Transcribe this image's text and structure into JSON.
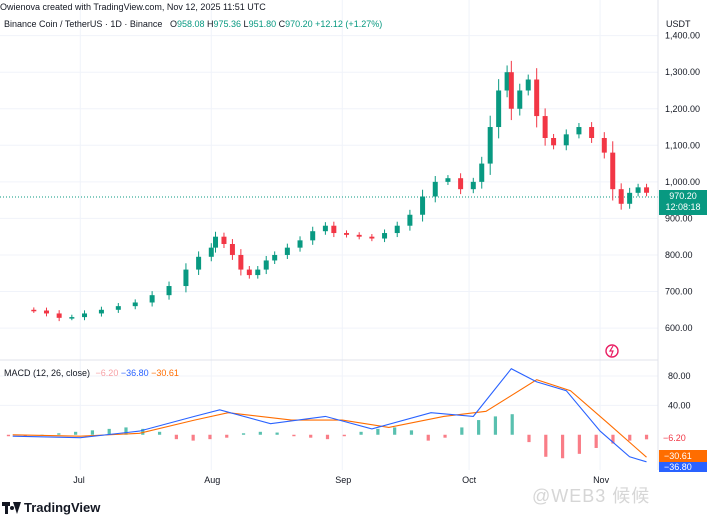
{
  "header": {
    "created_by": "Owienova created with TradingView.com, Nov 12, 2025 11:51 UTC",
    "symbol": "Binance Coin / TetherUS · 1D · Binance",
    "o_label": "O",
    "o_value": "958.08",
    "h_label": "H",
    "h_value": "975.36",
    "l_label": "L",
    "l_value": "951.80",
    "c_label": "C",
    "c_value": "970.20",
    "change": "+12.12 (+1.27%)"
  },
  "currency": "USDT",
  "last_price_label": "970.20",
  "countdown_label": "12:08:18",
  "macd_legend": {
    "title": "MACD (12, 26, close)",
    "hist": "−6.20",
    "macd": "−36.80",
    "signal": "−30.61"
  },
  "macd_badges": {
    "hist": "−6.20",
    "signal": "−30.61",
    "macd": "−36.80"
  },
  "footer": {
    "logo": "TradingView",
    "watermark": "@WEB3 候候"
  },
  "colors": {
    "up": "#089981",
    "down": "#f23645",
    "macd": "#2962ff",
    "signal": "#ff6d00",
    "hist_neg": "#f7525f",
    "hist_pos": "#22ab94"
  },
  "chart_data": [
    {
      "type": "candlestick",
      "title": "Binance Coin / TetherUS · 1D · Binance",
      "ylim": [
        540,
        1410
      ],
      "y_ticks": [
        "1,400.00",
        "1,300.00",
        "1,200.00",
        "1,100.00",
        "1,000.00",
        "900.00",
        "800.00",
        "700.00",
        "600.00"
      ],
      "x_ticks": [
        "Jul",
        "Aug",
        "Sep",
        "Oct",
        "Nov"
      ],
      "points": [
        [
          "2025-06-17",
          650
        ],
        [
          "2025-06-20",
          648
        ],
        [
          "2025-06-23",
          640
        ],
        [
          "2025-06-26",
          628
        ],
        [
          "2025-06-29",
          630
        ],
        [
          "2025-07-02",
          640
        ],
        [
          "2025-07-06",
          650
        ],
        [
          "2025-07-10",
          660
        ],
        [
          "2025-07-14",
          670
        ],
        [
          "2025-07-18",
          690
        ],
        [
          "2025-07-22",
          715
        ],
        [
          "2025-07-26",
          760
        ],
        [
          "2025-07-29",
          795
        ],
        [
          "2025-08-01",
          820
        ],
        [
          "2025-08-02",
          850
        ],
        [
          "2025-08-04",
          830
        ],
        [
          "2025-08-06",
          800
        ],
        [
          "2025-08-08",
          760
        ],
        [
          "2025-08-10",
          745
        ],
        [
          "2025-08-12",
          760
        ],
        [
          "2025-08-14",
          785
        ],
        [
          "2025-08-16",
          800
        ],
        [
          "2025-08-19",
          820
        ],
        [
          "2025-08-22",
          840
        ],
        [
          "2025-08-25",
          865
        ],
        [
          "2025-08-28",
          880
        ],
        [
          "2025-08-30",
          860
        ],
        [
          "2025-09-02",
          855
        ],
        [
          "2025-09-05",
          850
        ],
        [
          "2025-09-08",
          845
        ],
        [
          "2025-09-11",
          860
        ],
        [
          "2025-09-14",
          880
        ],
        [
          "2025-09-17",
          910
        ],
        [
          "2025-09-20",
          960
        ],
        [
          "2025-09-23",
          1000
        ],
        [
          "2025-09-26",
          1010
        ],
        [
          "2025-09-29",
          980
        ],
        [
          "2025-10-02",
          1000
        ],
        [
          "2025-10-04",
          1050
        ],
        [
          "2025-10-06",
          1150
        ],
        [
          "2025-10-08",
          1250
        ],
        [
          "2025-10-10",
          1300
        ],
        [
          "2025-10-11",
          1200
        ],
        [
          "2025-10-13",
          1250
        ],
        [
          "2025-10-15",
          1280
        ],
        [
          "2025-10-17",
          1180
        ],
        [
          "2025-10-19",
          1120
        ],
        [
          "2025-10-21",
          1100
        ],
        [
          "2025-10-24",
          1130
        ],
        [
          "2025-10-27",
          1150
        ],
        [
          "2025-10-30",
          1120
        ],
        [
          "2025-11-02",
          1080
        ],
        [
          "2025-11-04",
          980
        ],
        [
          "2025-11-06",
          940
        ],
        [
          "2025-11-08",
          970
        ],
        [
          "2025-11-10",
          985
        ],
        [
          "2025-11-12",
          970.2
        ]
      ]
    },
    {
      "type": "line",
      "title": "MACD (12, 26, close)",
      "ylim": [
        -48,
        95
      ],
      "y_ticks": [
        "80.00",
        "40.00"
      ],
      "x_ticks": [
        "Jul",
        "Aug",
        "Sep",
        "Oct",
        "Nov"
      ],
      "series": [
        {
          "name": "MACD",
          "values": [
            [
              "2025-06-15",
              -2
            ],
            [
              "2025-07-01",
              -4
            ],
            [
              "2025-07-15",
              5
            ],
            [
              "2025-07-28",
              25
            ],
            [
              "2025-08-03",
              34
            ],
            [
              "2025-08-15",
              15
            ],
            [
              "2025-08-28",
              25
            ],
            [
              "2025-09-08",
              8
            ],
            [
              "2025-09-22",
              30
            ],
            [
              "2025-10-02",
              25
            ],
            [
              "2025-10-11",
              90
            ],
            [
              "2025-10-17",
              72
            ],
            [
              "2025-10-24",
              60
            ],
            [
              "2025-11-01",
              5
            ],
            [
              "2025-11-08",
              -30
            ],
            [
              "2025-11-12",
              -36.8
            ]
          ]
        },
        {
          "name": "Signal",
          "values": [
            [
              "2025-06-15",
              0
            ],
            [
              "2025-07-01",
              -2
            ],
            [
              "2025-07-15",
              2
            ],
            [
              "2025-07-28",
              20
            ],
            [
              "2025-08-05",
              30
            ],
            [
              "2025-08-20",
              20
            ],
            [
              "2025-09-01",
              20
            ],
            [
              "2025-09-12",
              10
            ],
            [
              "2025-09-25",
              25
            ],
            [
              "2025-10-05",
              32
            ],
            [
              "2025-10-17",
              75
            ],
            [
              "2025-10-25",
              60
            ],
            [
              "2025-11-03",
              15
            ],
            [
              "2025-11-12",
              -30.61
            ]
          ]
        }
      ],
      "histogram": [
        -2,
        -2,
        0,
        2,
        4,
        6,
        8,
        10,
        8,
        4,
        -6,
        -8,
        -6,
        -4,
        2,
        4,
        3,
        -2,
        -4,
        -6,
        -2,
        4,
        8,
        10,
        6,
        -8,
        -4,
        10,
        20,
        25,
        28,
        -10,
        -30,
        -32,
        -26,
        -18,
        -12,
        -8,
        -6.2
      ]
    }
  ]
}
